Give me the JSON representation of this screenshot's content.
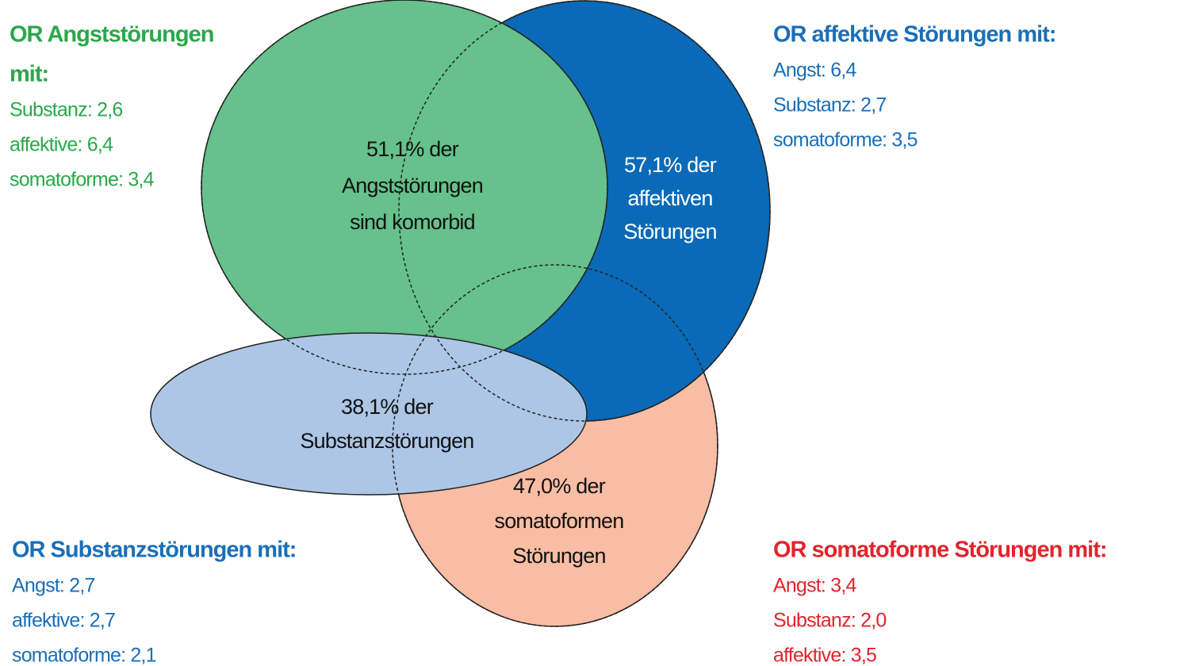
{
  "anxiety": {
    "title_lines": [
      "OR Angststörungen",
      "mit:"
    ],
    "items": [
      "Substanz: 2,6",
      "affektive: 6,4",
      "somatoforme: 3,4"
    ],
    "circle_label": [
      "51,1% der",
      "Angststörungen",
      "sind komorbid"
    ]
  },
  "affective": {
    "title_lines": [
      "OR affektive Störungen mit:"
    ],
    "items": [
      "Angst: 6,4",
      "Substanz: 2,7",
      "somatoforme: 3,5"
    ],
    "circle_label": [
      "57,1% der",
      "affektiven",
      "Störungen"
    ]
  },
  "substance": {
    "title_lines": [
      "OR Substanzstörungen mit:"
    ],
    "items": [
      "Angst: 2,7",
      "affektive: 2,7",
      "somatoforme: 2,1"
    ],
    "circle_label": [
      "38,1% der",
      "Substanzstörungen"
    ]
  },
  "somatoform": {
    "title_lines": [
      "OR somatoforme Störungen mit:"
    ],
    "items": [
      "Angst: 3,4",
      "Substanz: 2,0",
      "affektive: 3,5"
    ],
    "circle_label": [
      "47,0% der",
      "somatoformen",
      "Störungen"
    ]
  }
}
